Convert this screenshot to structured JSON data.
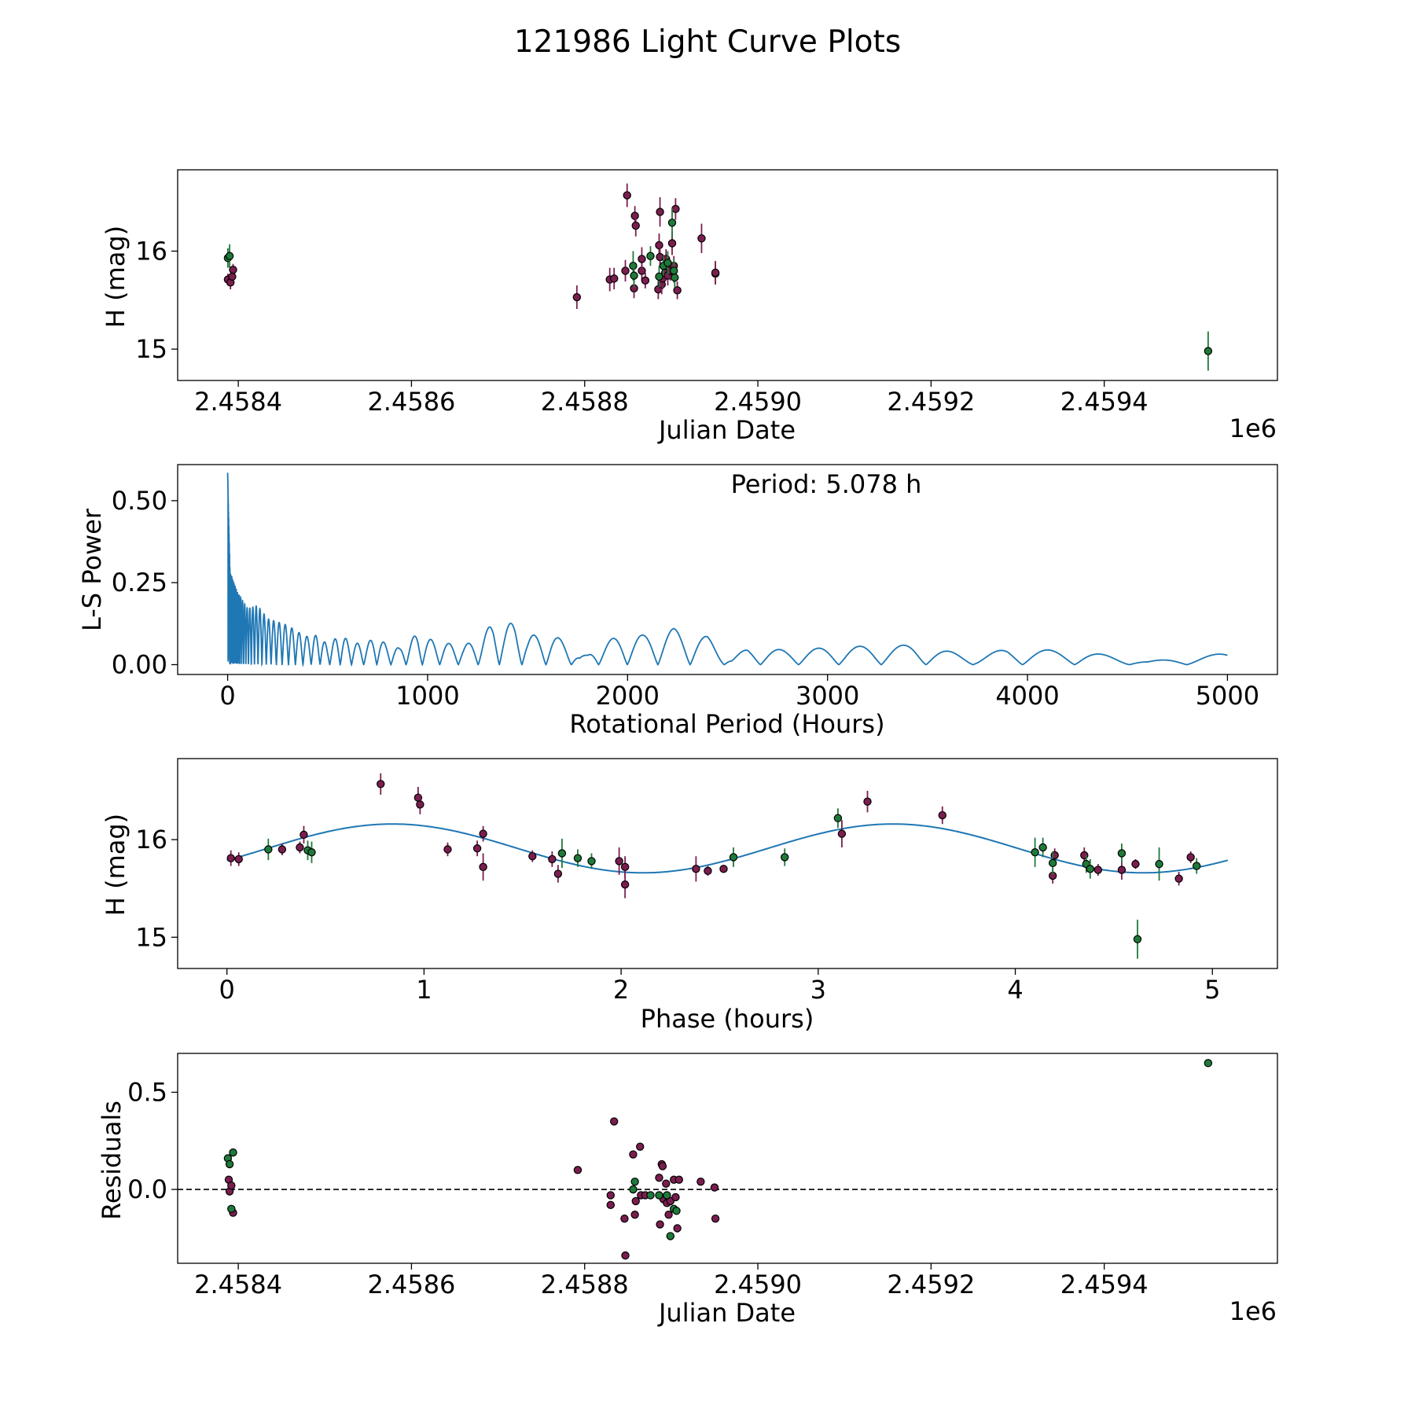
{
  "figure": {
    "title": "121986 Light Curve Plots",
    "colors": {
      "group_a": "#7b1e4f",
      "group_b": "#1f7a3a",
      "curve": "#1f77b4",
      "edge": "#000000"
    }
  },
  "chart_data": [
    {
      "id": "lc",
      "type": "scatter",
      "xlabel": "Julian Date",
      "ylabel": "H (mag)",
      "offset_label": "1e6",
      "xlim": [
        2458330,
        2459600
      ],
      "ylim": [
        14.68,
        16.83
      ],
      "y_inverted": false,
      "xticks": [
        2458400,
        2458600,
        2458800,
        2459000,
        2459200,
        2459400
      ],
      "xtick_labels": [
        "2.4584",
        "2.4586",
        "2.4588",
        "2.4590",
        "2.4592",
        "2.4594"
      ],
      "yticks": [
        15,
        16
      ],
      "ytick_labels": [
        "15",
        "16"
      ],
      "series": [
        {
          "name": "group_a",
          "color": "#7b1e4f",
          "points": [
            [
              2458388,
              15.71,
              0.06
            ],
            [
              2458391,
              15.68,
              0.07
            ],
            [
              2458393,
              15.74,
              0.05
            ],
            [
              2458394,
              15.81,
              0.06
            ],
            [
              2458791,
              15.53,
              0.12
            ],
            [
              2458829,
              15.71,
              0.12
            ],
            [
              2458834,
              15.72,
              0.11
            ],
            [
              2458847,
              15.8,
              0.11
            ],
            [
              2458849,
              16.57,
              0.12
            ],
            [
              2458857,
              15.62,
              0.1
            ],
            [
              2458858,
              16.36,
              0.1
            ],
            [
              2458859,
              16.26,
              0.11
            ],
            [
              2458866,
              15.8,
              0.1
            ],
            [
              2458866,
              15.92,
              0.12
            ],
            [
              2458870,
              15.7,
              0.08
            ],
            [
              2458885,
              15.61,
              0.1
            ],
            [
              2458886,
              16.06,
              0.12
            ],
            [
              2458887,
              15.94,
              0.1
            ],
            [
              2458887,
              16.4,
              0.15
            ],
            [
              2458889,
              15.66,
              0.1
            ],
            [
              2458890,
              15.72,
              0.11
            ],
            [
              2458893,
              15.78,
              0.08
            ],
            [
              2458894,
              15.92,
              0.1
            ],
            [
              2458896,
              15.75,
              0.1
            ],
            [
              2458899,
              15.8,
              0.1
            ],
            [
              2458901,
              16.08,
              0.12
            ],
            [
              2458903,
              15.85,
              0.1
            ],
            [
              2458905,
              16.43,
              0.11
            ],
            [
              2458907,
              15.6,
              0.09
            ],
            [
              2458935,
              16.13,
              0.15
            ],
            [
              2458951,
              15.77,
              0.11
            ],
            [
              2458951,
              15.78,
              0.12
            ]
          ]
        },
        {
          "name": "group_b",
          "color": "#1f7a3a",
          "points": [
            [
              2458388,
              15.93,
              0.1
            ],
            [
              2458390,
              15.95,
              0.12
            ],
            [
              2458856,
              15.85,
              0.15
            ],
            [
              2458857,
              15.75,
              0.12
            ],
            [
              2458876,
              15.95,
              0.1
            ],
            [
              2458886,
              15.74,
              0.11
            ],
            [
              2458891,
              15.85,
              0.1
            ],
            [
              2458896,
              15.88,
              0.12
            ],
            [
              2458901,
              16.29,
              0.15
            ],
            [
              2458903,
              15.8,
              0.12
            ],
            [
              2458904,
              15.73,
              0.1
            ],
            [
              2459520,
              14.98,
              0.2
            ]
          ]
        }
      ]
    },
    {
      "id": "ls",
      "type": "line",
      "xlabel": "Rotational Period (Hours)",
      "ylabel": "L-S Power",
      "annotation": "Period: 5.078 h",
      "xlim": [
        -250,
        5250
      ],
      "ylim": [
        -0.03,
        0.61
      ],
      "xticks": [
        0,
        1000,
        2000,
        3000,
        4000,
        5000
      ],
      "xtick_labels": [
        "0",
        "1000",
        "2000",
        "3000",
        "4000",
        "5000"
      ],
      "yticks": [
        0.0,
        0.25,
        0.5
      ],
      "ytick_labels": [
        "0.00",
        "0.25",
        "0.50"
      ],
      "color": "#1f77b4",
      "envelope": [
        [
          0,
          0.585
        ],
        [
          5,
          0.45
        ],
        [
          12,
          0.28
        ],
        [
          25,
          0.26
        ],
        [
          50,
          0.22
        ],
        [
          80,
          0.19
        ],
        [
          100,
          0.17
        ],
        [
          150,
          0.18
        ],
        [
          200,
          0.14
        ],
        [
          250,
          0.13
        ],
        [
          300,
          0.12
        ],
        [
          350,
          0.1
        ],
        [
          400,
          0.085
        ],
        [
          450,
          0.09
        ],
        [
          500,
          0.06
        ],
        [
          560,
          0.09
        ],
        [
          620,
          0.07
        ],
        [
          680,
          0.06
        ],
        [
          740,
          0.085
        ],
        [
          800,
          0.06
        ],
        [
          860,
          0.05
        ],
        [
          950,
          0.095
        ],
        [
          1000,
          0.08
        ],
        [
          1050,
          0.07
        ],
        [
          1100,
          0.065
        ],
        [
          1180,
          0.06
        ],
        [
          1250,
          0.075
        ],
        [
          1330,
          0.13
        ],
        [
          1380,
          0.12
        ],
        [
          1440,
          0.13
        ],
        [
          1500,
          0.09
        ],
        [
          1560,
          0.09
        ],
        [
          1620,
          0.09
        ],
        [
          1700,
          0.07
        ],
        [
          1760,
          0.025
        ],
        [
          1800,
          0.03
        ],
        [
          1850,
          0.065
        ],
        [
          1980,
          0.09
        ],
        [
          2080,
          0.09
        ],
        [
          2230,
          0.11
        ],
        [
          2400,
          0.085
        ],
        [
          2520,
          0.02
        ],
        [
          2600,
          0.05
        ],
        [
          2800,
          0.045
        ],
        [
          3100,
          0.055
        ],
        [
          3430,
          0.06
        ],
        [
          3750,
          0.025
        ],
        [
          3900,
          0.05
        ],
        [
          4280,
          0.04
        ],
        [
          4600,
          0.01
        ],
        [
          5000,
          0.035
        ]
      ]
    },
    {
      "id": "phase",
      "type": "scatter",
      "xlabel": "Phase (hours)",
      "ylabel": "H (mag)",
      "xlim": [
        -0.25,
        5.33
      ],
      "ylim": [
        14.68,
        16.83
      ],
      "xticks": [
        0,
        1,
        2,
        3,
        4,
        5
      ],
      "xtick_labels": [
        "0",
        "1",
        "2",
        "3",
        "4",
        "5"
      ],
      "yticks": [
        15,
        16
      ],
      "ytick_labels": [
        "15",
        "16"
      ],
      "model": {
        "mean": 15.91,
        "amplitude": 0.25,
        "phase_max": 0.84,
        "half_period": 2.539,
        "x_end": 5.078
      },
      "series": [
        {
          "name": "group_a",
          "color": "#7b1e4f",
          "points": [
            [
              0.02,
              15.81,
              0.08
            ],
            [
              0.06,
              15.8,
              0.07
            ],
            [
              0.28,
              15.9,
              0.06
            ],
            [
              0.37,
              15.92,
              0.06
            ],
            [
              0.39,
              16.05,
              0.09
            ],
            [
              0.78,
              16.57,
              0.11
            ],
            [
              0.97,
              16.43,
              0.11
            ],
            [
              0.98,
              16.36,
              0.1
            ],
            [
              1.12,
              15.9,
              0.07
            ],
            [
              1.27,
              15.91,
              0.08
            ],
            [
              1.3,
              16.06,
              0.08
            ],
            [
              1.3,
              15.72,
              0.14
            ],
            [
              1.55,
              15.83,
              0.06
            ],
            [
              1.65,
              15.8,
              0.08
            ],
            [
              1.68,
              15.65,
              0.09
            ],
            [
              1.99,
              15.78,
              0.14
            ],
            [
              2.02,
              15.72,
              0.11
            ],
            [
              2.02,
              15.54,
              0.14
            ],
            [
              2.38,
              15.7,
              0.13
            ],
            [
              2.44,
              15.68,
              0.05
            ],
            [
              2.52,
              15.7,
              0.04
            ],
            [
              3.12,
              16.06,
              0.14
            ],
            [
              3.25,
              16.39,
              0.11
            ],
            [
              3.63,
              16.25,
              0.09
            ],
            [
              4.19,
              15.63,
              0.08
            ],
            [
              4.2,
              15.84,
              0.07
            ],
            [
              4.35,
              15.84,
              0.08
            ],
            [
              4.42,
              15.69,
              0.06
            ],
            [
              4.54,
              15.69,
              0.1
            ],
            [
              4.61,
              15.75,
              0.05
            ],
            [
              4.83,
              15.6,
              0.07
            ],
            [
              4.89,
              15.82,
              0.06
            ]
          ]
        },
        {
          "name": "group_b",
          "color": "#1f7a3a",
          "points": [
            [
              0.21,
              15.9,
              0.11
            ],
            [
              0.41,
              15.89,
              0.1
            ],
            [
              0.43,
              15.87,
              0.11
            ],
            [
              1.7,
              15.86,
              0.15
            ],
            [
              1.78,
              15.81,
              0.09
            ],
            [
              1.85,
              15.78,
              0.08
            ],
            [
              2.57,
              15.82,
              0.1
            ],
            [
              2.83,
              15.82,
              0.09
            ],
            [
              3.1,
              16.22,
              0.1
            ],
            [
              4.1,
              15.87,
              0.15
            ],
            [
              4.14,
              15.92,
              0.1
            ],
            [
              4.19,
              15.76,
              0.12
            ],
            [
              4.36,
              15.75,
              0.09
            ],
            [
              4.38,
              15.7,
              0.1
            ],
            [
              4.54,
              15.86,
              0.1
            ],
            [
              4.62,
              14.98,
              0.2
            ],
            [
              4.73,
              15.75,
              0.17
            ],
            [
              4.92,
              15.73,
              0.08
            ]
          ]
        }
      ]
    },
    {
      "id": "resid",
      "type": "scatter",
      "xlabel": "Julian Date",
      "ylabel": "Residuals",
      "offset_label": "1e6",
      "xlim": [
        2458330,
        2459600
      ],
      "ylim": [
        -0.38,
        0.7
      ],
      "xticks": [
        2458400,
        2458600,
        2458800,
        2459000,
        2459200,
        2459400
      ],
      "xtick_labels": [
        "2.4584",
        "2.4586",
        "2.4588",
        "2.4590",
        "2.4592",
        "2.4594"
      ],
      "yticks": [
        0.0,
        0.5
      ],
      "ytick_labels": [
        "0.0",
        "0.5"
      ],
      "zero_line": 0,
      "series": [
        {
          "name": "group_a",
          "color": "#7b1e4f",
          "points": [
            [
              2458389,
              0.05
            ],
            [
              2458390,
              -0.01
            ],
            [
              2458392,
              0.02
            ],
            [
              2458394,
              -0.12
            ],
            [
              2458792,
              0.1
            ],
            [
              2458830,
              -0.03
            ],
            [
              2458830,
              -0.08
            ],
            [
              2458834,
              0.35
            ],
            [
              2458846,
              -0.15
            ],
            [
              2458847,
              -0.34
            ],
            [
              2458856,
              0.18
            ],
            [
              2458858,
              -0.13
            ],
            [
              2458859,
              -0.06
            ],
            [
              2458864,
              0.22
            ],
            [
              2458865,
              -0.03
            ],
            [
              2458870,
              -0.03
            ],
            [
              2458886,
              0.06
            ],
            [
              2458887,
              -0.18
            ],
            [
              2458889,
              0.13
            ],
            [
              2458890,
              0.12
            ],
            [
              2458891,
              -0.05
            ],
            [
              2458894,
              0.03
            ],
            [
              2458895,
              -0.07
            ],
            [
              2458897,
              -0.13
            ],
            [
              2458899,
              -0.06
            ],
            [
              2458903,
              0.05
            ],
            [
              2458905,
              -0.04
            ],
            [
              2458907,
              -0.2
            ],
            [
              2458909,
              0.05
            ],
            [
              2458934,
              0.04
            ],
            [
              2458950,
              0.01
            ],
            [
              2458951,
              -0.15
            ]
          ]
        },
        {
          "name": "group_b",
          "color": "#1f7a3a",
          "points": [
            [
              2458388,
              0.16
            ],
            [
              2458390,
              0.13
            ],
            [
              2458392,
              -0.1
            ],
            [
              2458394,
              0.19
            ],
            [
              2458856,
              0.0
            ],
            [
              2458858,
              0.04
            ],
            [
              2458876,
              -0.03
            ],
            [
              2458886,
              -0.03
            ],
            [
              2458895,
              -0.03
            ],
            [
              2458899,
              -0.24
            ],
            [
              2458903,
              -0.1
            ],
            [
              2458906,
              -0.11
            ],
            [
              2459520,
              0.65
            ]
          ]
        }
      ]
    }
  ]
}
